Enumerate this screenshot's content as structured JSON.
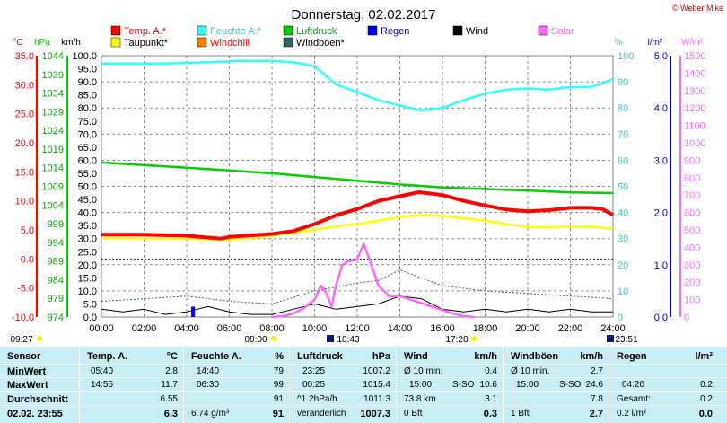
{
  "title": "Donnerstag, 02.02.2017",
  "copyright": "© Weber Mike",
  "legend": [
    {
      "label": "Temp. A.*",
      "color": "#ff0000"
    },
    {
      "label": "Feuchte A.*",
      "color": "#33ffff"
    },
    {
      "label": "Luftdruck",
      "color": "#00cc00"
    },
    {
      "label": "Regen",
      "color": "#0000ff"
    },
    {
      "label": "Wind",
      "color": "#000000"
    },
    {
      "label": "Solar",
      "color": "#ff66ff"
    },
    {
      "label": "Taupunkt*",
      "color": "#ffff00"
    },
    {
      "label": "Windchill",
      "color": "#ff8000"
    },
    {
      "label": "Windböen*",
      "color": "#336666"
    }
  ],
  "axes": {
    "temp_unit": "°C",
    "press_unit": "hPa",
    "wind_unit": "km/h",
    "hum_unit": "%",
    "rain_unit": "l/m²",
    "solar_unit": "W/m²",
    "temp_ticks": [
      "35.0",
      "30.0",
      "25.0",
      "20.0",
      "15.0",
      "10.0",
      "5.0",
      "0.0",
      "-5.0",
      "-10.0"
    ],
    "press_ticks": [
      "1044",
      "1039",
      "1034",
      "1029",
      "1024",
      "1019",
      "1014",
      "1009",
      "1004",
      "999",
      "994",
      "989",
      "984",
      "979",
      "974"
    ],
    "wind_ticks": [
      "100.0",
      "95.0",
      "90.0",
      "85.0",
      "80.0",
      "75.0",
      "70.0",
      "65.0",
      "60.0",
      "55.0",
      "50.0",
      "45.0",
      "40.0",
      "35.0",
      "30.0",
      "25.0",
      "20.0",
      "15.0",
      "10.0",
      "5.0",
      "0.0"
    ],
    "hum_ticks": [
      "100",
      "90",
      "80",
      "70",
      "60",
      "50",
      "40",
      "30",
      "20",
      "10",
      "0"
    ],
    "rain_ticks": [
      "5.0",
      "4.0",
      "3.0",
      "2.0",
      "1.0",
      "0.0"
    ],
    "solar_ticks": [
      "1500",
      "1400",
      "1300",
      "1200",
      "1100",
      "1000",
      "900",
      "800",
      "700",
      "600",
      "500",
      "400",
      "300",
      "200",
      "100",
      "0"
    ],
    "time_ticks": [
      "00:00",
      "02:00",
      "04:00",
      "06:00",
      "08:00",
      "10:00",
      "12:00",
      "14:00",
      "16:00",
      "18:00",
      "20:00",
      "22:00",
      "24:00"
    ]
  },
  "sun_events": {
    "sunrise_top": "08:00",
    "sunrise_bottom": "09:27",
    "moon": "10:43",
    "sunset": "17:28",
    "moonset": "23:51"
  },
  "chart_data": {
    "type": "line",
    "x_label_hours": [
      0,
      24
    ],
    "series": [
      {
        "name": "Temp. A.*",
        "unit": "°C",
        "color": "#ff0000",
        "points": [
          [
            0,
            4.2
          ],
          [
            2,
            4.2
          ],
          [
            4,
            4
          ],
          [
            5.6,
            3.5
          ],
          [
            6,
            3.8
          ],
          [
            8,
            4.3
          ],
          [
            9,
            4.8
          ],
          [
            10,
            6
          ],
          [
            11,
            7.5
          ],
          [
            12,
            8.6
          ],
          [
            13,
            10
          ],
          [
            14,
            10.8
          ],
          [
            14.9,
            11.5
          ],
          [
            16,
            11
          ],
          [
            17,
            10
          ],
          [
            18,
            9.2
          ],
          [
            19,
            8.5
          ],
          [
            20,
            8.2
          ],
          [
            21,
            8.4
          ],
          [
            22,
            8.8
          ],
          [
            23,
            8.8
          ],
          [
            23.5,
            8.6
          ],
          [
            24,
            7.6
          ]
        ]
      },
      {
        "name": "Taupunkt*",
        "unit": "°C",
        "color": "#ffff00",
        "points": [
          [
            0,
            3.6
          ],
          [
            4,
            3.5
          ],
          [
            6,
            3.3
          ],
          [
            8,
            4
          ],
          [
            9,
            4.5
          ],
          [
            10,
            5
          ],
          [
            11,
            5.6
          ],
          [
            12,
            6
          ],
          [
            13,
            6.6
          ],
          [
            14,
            7.2
          ],
          [
            15,
            7.6
          ],
          [
            16,
            7.4
          ],
          [
            17,
            7
          ],
          [
            18,
            6.6
          ],
          [
            19,
            6
          ],
          [
            20,
            5.5
          ],
          [
            21,
            5.4
          ],
          [
            22,
            5.6
          ],
          [
            23,
            5.5
          ],
          [
            24,
            5.2
          ]
        ]
      },
      {
        "name": "Feuchte A.*",
        "unit": "%",
        "color": "#33ffff",
        "points": [
          [
            0,
            97
          ],
          [
            3,
            97
          ],
          [
            5,
            97.5
          ],
          [
            6.5,
            98
          ],
          [
            8,
            98
          ],
          [
            9,
            97.5
          ],
          [
            10,
            96
          ],
          [
            11,
            89
          ],
          [
            12,
            86
          ],
          [
            13,
            83
          ],
          [
            14,
            81
          ],
          [
            15,
            79
          ],
          [
            16,
            80
          ],
          [
            17,
            83
          ],
          [
            18,
            85.5
          ],
          [
            19,
            87
          ],
          [
            20,
            87.5
          ],
          [
            21,
            87
          ],
          [
            22,
            88
          ],
          [
            23,
            88
          ],
          [
            24,
            91
          ]
        ]
      },
      {
        "name": "Luftdruck",
        "unit": "hPa",
        "color": "#00cc00",
        "points": [
          [
            0,
            1015.4
          ],
          [
            4,
            1014
          ],
          [
            8,
            1012.5
          ],
          [
            10,
            1011.5
          ],
          [
            12,
            1010.5
          ],
          [
            14,
            1009.5
          ],
          [
            16,
            1008.7
          ],
          [
            18,
            1008.3
          ],
          [
            20,
            1007.9
          ],
          [
            22,
            1007.4
          ],
          [
            24,
            1007.2
          ]
        ]
      },
      {
        "name": "Solar",
        "unit": "W/m²",
        "color": "#ff66ff",
        "points": [
          [
            8,
            0
          ],
          [
            8.5,
            5
          ],
          [
            9,
            20
          ],
          [
            9.5,
            50
          ],
          [
            10,
            100
          ],
          [
            10.3,
            180
          ],
          [
            10.5,
            150
          ],
          [
            10.8,
            60
          ],
          [
            11,
            180
          ],
          [
            11.3,
            300
          ],
          [
            11.6,
            320
          ],
          [
            12,
            330
          ],
          [
            12.3,
            420
          ],
          [
            12.6,
            320
          ],
          [
            13,
            180
          ],
          [
            13.5,
            120
          ],
          [
            14,
            120
          ],
          [
            14.5,
            100
          ],
          [
            15,
            80
          ],
          [
            15.5,
            60
          ],
          [
            16,
            40
          ],
          [
            16.5,
            20
          ],
          [
            17,
            5
          ],
          [
            17.5,
            0
          ]
        ]
      },
      {
        "name": "Wind",
        "unit": "km/h",
        "color": "#000000",
        "points": [
          [
            0,
            3
          ],
          [
            1,
            2
          ],
          [
            2,
            3
          ],
          [
            3,
            1
          ],
          [
            4,
            2
          ],
          [
            5,
            4
          ],
          [
            6,
            2
          ],
          [
            7,
            1
          ],
          [
            8,
            1
          ],
          [
            9,
            3
          ],
          [
            10,
            5
          ],
          [
            11,
            3
          ],
          [
            12,
            4
          ],
          [
            13,
            5
          ],
          [
            14,
            8
          ],
          [
            15,
            7
          ],
          [
            16,
            3
          ],
          [
            17,
            2
          ],
          [
            18,
            3
          ],
          [
            19,
            2
          ],
          [
            20,
            3
          ],
          [
            21,
            2
          ],
          [
            22,
            3
          ],
          [
            23,
            2
          ],
          [
            24,
            2
          ]
        ]
      },
      {
        "name": "Windböen*",
        "unit": "km/h",
        "color": "#336666",
        "points": [
          [
            0,
            6
          ],
          [
            2,
            7
          ],
          [
            4,
            8
          ],
          [
            6,
            6
          ],
          [
            8,
            5
          ],
          [
            10,
            10
          ],
          [
            12,
            13
          ],
          [
            13,
            14
          ],
          [
            14,
            18
          ],
          [
            15,
            15
          ],
          [
            16,
            12
          ],
          [
            18,
            10
          ],
          [
            20,
            9
          ],
          [
            22,
            8
          ],
          [
            24,
            7
          ]
        ]
      },
      {
        "name": "Regen",
        "unit": "l/m²",
        "color": "#0000ff",
        "points": [
          [
            4.3,
            0
          ],
          [
            4.3,
            0.2
          ]
        ]
      }
    ]
  },
  "stats": {
    "rows": [
      "Sensor",
      "MinWert",
      "MaxWert",
      "Durchschnitt",
      "02.02. 23:55"
    ],
    "temp": {
      "head": "Temp. A.",
      "unit": "°C",
      "min_time": "05:40",
      "min": "2.8",
      "max_time": "14:55",
      "max": "11.7",
      "avg": "6.55",
      "cur": "6.3"
    },
    "hum": {
      "head": "Feuchte A.",
      "unit": "%",
      "min_time": "14:40",
      "min": "79",
      "max_time": "06:30",
      "max": "99",
      "avg": "91",
      "cur_abs": "6.74 g/m³",
      "cur": "91"
    },
    "press": {
      "head": "Luftdruck",
      "unit": "hPa",
      "min_time": "23:25",
      "min": "1007.2",
      "max_time": "00:25",
      "max": "1015.4",
      "trend": "^1.2hPa/h",
      "avg": "1011.3",
      "cur_label": "veränderlich",
      "cur": "1007.3"
    },
    "wind": {
      "head": "Wind",
      "unit": "km/h",
      "r1_label": "Ø 10 min.",
      "r1_val": "0.4",
      "r2_time": "15:00",
      "r2_dir": "S-SO",
      "r2_val": "10.6",
      "r3_label": "73.8 km",
      "r3_val": "3.1",
      "r4_label": "0 Bft",
      "r4_val": "0.3"
    },
    "gust": {
      "head": "Windböen",
      "unit": "km/h",
      "r1_label": "Ø 10 min.",
      "r1_val": "2.7",
      "r2_time": "15:00",
      "r2_dir": "S-SO",
      "r2_val": "24.6",
      "r3_val": "7.8",
      "r4_label": "1 Bft",
      "r4_val": "2.7"
    },
    "rain": {
      "head": "Regen",
      "unit": "l/m²",
      "r2_time": "04:20",
      "r2_val": "0.2",
      "r3_label": "Gesamt:",
      "r3_val": "0.2",
      "r4_label": "0.2 l/m²",
      "r4_val": "0.0"
    }
  }
}
